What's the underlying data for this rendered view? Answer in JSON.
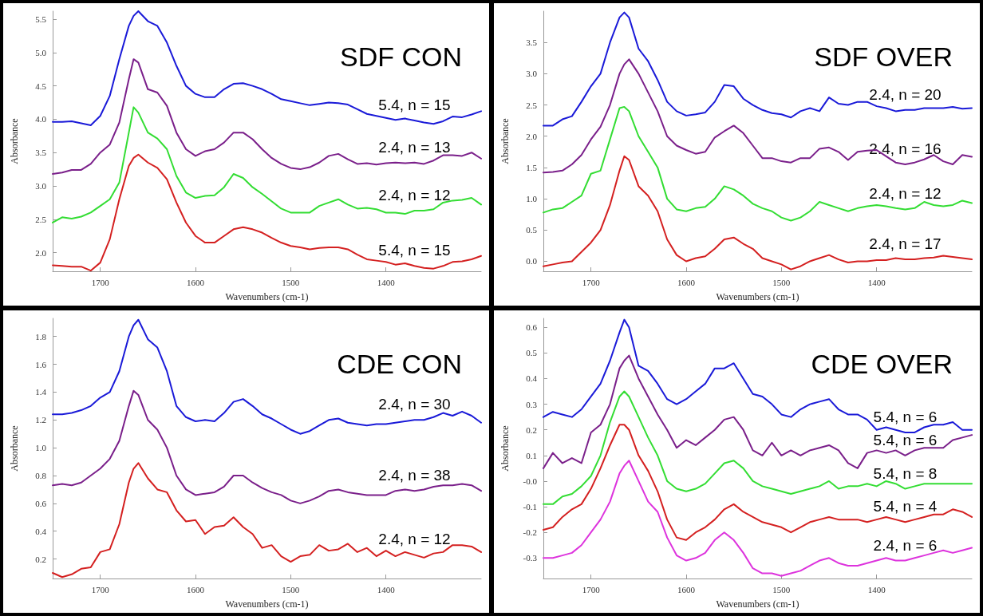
{
  "chart_data": [
    {
      "type": "line",
      "title": "SDF CON",
      "xlabel": "Wavenumbers (cm-1)",
      "ylabel": "Absorbance",
      "xlim": [
        1750,
        1300
      ],
      "xticks": [
        1700,
        1600,
        1500,
        1400
      ],
      "ylim": [
        1.72,
        5.62
      ],
      "yticks": [
        {
          "value": 2,
          "label": "2.0"
        },
        {
          "value": 2.5,
          "label": "2.5"
        },
        {
          "value": 3,
          "label": "3.0"
        },
        {
          "value": 3.5,
          "label": "3.5"
        },
        {
          "value": 4,
          "label": "4.0"
        },
        {
          "value": 4.5,
          "label": "4.5"
        },
        {
          "value": 5,
          "label": "5.0"
        },
        {
          "value": 5.5,
          "label": "5.5"
        }
      ],
      "x": [
        1750,
        1740,
        1730,
        1720,
        1710,
        1700,
        1690,
        1680,
        1670,
        1665,
        1660,
        1650,
        1640,
        1630,
        1620,
        1610,
        1600,
        1590,
        1580,
        1570,
        1560,
        1550,
        1540,
        1530,
        1520,
        1510,
        1500,
        1490,
        1480,
        1470,
        1460,
        1450,
        1440,
        1430,
        1420,
        1410,
        1400,
        1390,
        1380,
        1370,
        1360,
        1350,
        1340,
        1330,
        1320,
        1310,
        1300
      ],
      "series": [
        {
          "name": "5.4, n = 15",
          "color": "#1a1ad8",
          "values": [
            3.96,
            3.96,
            3.97,
            3.94,
            3.91,
            4.05,
            4.35,
            4.9,
            5.4,
            5.55,
            5.62,
            5.47,
            5.4,
            5.15,
            4.8,
            4.5,
            4.38,
            4.33,
            4.33,
            4.45,
            4.53,
            4.54,
            4.5,
            4.45,
            4.38,
            4.3,
            4.27,
            4.24,
            4.21,
            4.23,
            4.25,
            4.24,
            4.22,
            4.15,
            4.08,
            4.05,
            4.02,
            3.99,
            4.01,
            3.98,
            3.95,
            3.93,
            3.97,
            4.04,
            4.03,
            4.07,
            4.12
          ]
        },
        {
          "name": "2.4, n = 13",
          "color": "#7a1f8a",
          "values": [
            3.18,
            3.2,
            3.24,
            3.24,
            3.33,
            3.5,
            3.62,
            3.95,
            4.6,
            4.9,
            4.85,
            4.45,
            4.4,
            4.2,
            3.8,
            3.55,
            3.45,
            3.52,
            3.55,
            3.65,
            3.8,
            3.8,
            3.7,
            3.55,
            3.42,
            3.33,
            3.27,
            3.25,
            3.28,
            3.35,
            3.45,
            3.48,
            3.4,
            3.33,
            3.34,
            3.32,
            3.34,
            3.35,
            3.34,
            3.35,
            3.33,
            3.38,
            3.46,
            3.46,
            3.45,
            3.5,
            3.41
          ]
        },
        {
          "name": "2.4, n = 12",
          "color": "#33dd33",
          "values": [
            2.45,
            2.53,
            2.51,
            2.54,
            2.6,
            2.7,
            2.8,
            3.05,
            3.8,
            4.18,
            4.1,
            3.8,
            3.71,
            3.55,
            3.15,
            2.9,
            2.82,
            2.85,
            2.86,
            2.98,
            3.18,
            3.12,
            2.98,
            2.88,
            2.77,
            2.66,
            2.6,
            2.6,
            2.6,
            2.7,
            2.75,
            2.8,
            2.72,
            2.66,
            2.67,
            2.65,
            2.6,
            2.6,
            2.58,
            2.63,
            2.63,
            2.65,
            2.75,
            2.78,
            2.79,
            2.82,
            2.72
          ]
        },
        {
          "name": "5.4, n = 15",
          "color": "#d42020",
          "values": [
            1.81,
            1.8,
            1.79,
            1.79,
            1.73,
            1.85,
            2.2,
            2.8,
            3.3,
            3.42,
            3.47,
            3.35,
            3.27,
            3.1,
            2.75,
            2.45,
            2.25,
            2.15,
            2.15,
            2.25,
            2.35,
            2.38,
            2.35,
            2.3,
            2.22,
            2.15,
            2.1,
            2.08,
            2.05,
            2.07,
            2.08,
            2.08,
            2.05,
            1.97,
            1.9,
            1.88,
            1.86,
            1.82,
            1.84,
            1.8,
            1.77,
            1.76,
            1.8,
            1.86,
            1.87,
            1.9,
            1.95
          ]
        }
      ]
    },
    {
      "type": "line",
      "title": "SDF OVER",
      "xlabel": "Wavenumbers (cm-1)",
      "ylabel": "Absorbance",
      "xlim": [
        1750,
        1300
      ],
      "xticks": [
        1700,
        1600,
        1500,
        1400
      ],
      "ylim": [
        -0.16,
        4.0
      ],
      "yticks": [
        {
          "value": 0,
          "label": "0.0"
        },
        {
          "value": 0.5,
          "label": "0.5"
        },
        {
          "value": 1,
          "label": "1.0"
        },
        {
          "value": 1.5,
          "label": "1.5"
        },
        {
          "value": 2,
          "label": "2.0"
        },
        {
          "value": 2.5,
          "label": "2.5"
        },
        {
          "value": 3,
          "label": "3.0"
        },
        {
          "value": 3.5,
          "label": "3.5"
        }
      ],
      "x": [
        1750,
        1740,
        1730,
        1720,
        1710,
        1700,
        1690,
        1680,
        1670,
        1665,
        1660,
        1650,
        1640,
        1630,
        1620,
        1610,
        1600,
        1590,
        1580,
        1570,
        1560,
        1550,
        1540,
        1530,
        1520,
        1510,
        1500,
        1490,
        1480,
        1470,
        1460,
        1450,
        1440,
        1430,
        1420,
        1410,
        1400,
        1390,
        1380,
        1370,
        1360,
        1350,
        1340,
        1330,
        1320,
        1310,
        1300
      ],
      "series": [
        {
          "name": "2.4, n = 20",
          "color": "#1a1ad8",
          "values": [
            2.17,
            2.17,
            2.27,
            2.32,
            2.55,
            2.8,
            3.0,
            3.5,
            3.9,
            3.98,
            3.9,
            3.4,
            3.2,
            2.9,
            2.55,
            2.4,
            2.33,
            2.35,
            2.38,
            2.55,
            2.82,
            2.8,
            2.6,
            2.5,
            2.42,
            2.37,
            2.35,
            2.3,
            2.4,
            2.45,
            2.4,
            2.62,
            2.52,
            2.5,
            2.55,
            2.55,
            2.48,
            2.45,
            2.4,
            2.42,
            2.42,
            2.45,
            2.45,
            2.45,
            2.47,
            2.44,
            2.45
          ]
        },
        {
          "name": "2.4, n = 16",
          "color": "#7a1f8a",
          "values": [
            1.42,
            1.43,
            1.45,
            1.55,
            1.7,
            1.95,
            2.15,
            2.5,
            3.0,
            3.15,
            3.23,
            3.0,
            2.7,
            2.4,
            2.0,
            1.85,
            1.78,
            1.72,
            1.75,
            1.98,
            2.08,
            2.17,
            2.05,
            1.85,
            1.65,
            1.65,
            1.6,
            1.58,
            1.65,
            1.65,
            1.8,
            1.82,
            1.75,
            1.62,
            1.75,
            1.77,
            1.78,
            1.68,
            1.58,
            1.55,
            1.58,
            1.63,
            1.7,
            1.6,
            1.55,
            1.7,
            1.67
          ]
        },
        {
          "name": "2.4, n = 12",
          "color": "#33dd33",
          "values": [
            0.78,
            0.83,
            0.85,
            0.95,
            1.05,
            1.4,
            1.45,
            1.95,
            2.45,
            2.47,
            2.4,
            2.0,
            1.75,
            1.5,
            1.0,
            0.83,
            0.8,
            0.85,
            0.87,
            1.0,
            1.2,
            1.15,
            1.05,
            0.92,
            0.85,
            0.8,
            0.7,
            0.65,
            0.7,
            0.8,
            0.95,
            0.9,
            0.85,
            0.8,
            0.85,
            0.88,
            0.9,
            0.88,
            0.85,
            0.83,
            0.85,
            0.95,
            0.9,
            0.88,
            0.9,
            0.97,
            0.93
          ]
        },
        {
          "name": "2.4, n = 17",
          "color": "#d42020",
          "values": [
            -0.08,
            -0.05,
            -0.02,
            0.0,
            0.15,
            0.3,
            0.5,
            0.9,
            1.45,
            1.68,
            1.62,
            1.2,
            1.05,
            0.8,
            0.35,
            0.1,
            0.0,
            0.05,
            0.08,
            0.2,
            0.35,
            0.38,
            0.28,
            0.2,
            0.05,
            0.0,
            -0.05,
            -0.13,
            -0.08,
            0.0,
            0.05,
            0.1,
            0.03,
            -0.02,
            0.0,
            0.0,
            0.02,
            0.02,
            0.05,
            0.03,
            0.03,
            0.05,
            0.06,
            0.09,
            0.07,
            0.05,
            0.03
          ]
        }
      ]
    },
    {
      "type": "line",
      "title": "CDE CON",
      "xlabel": "Wavenumbers (cm-1)",
      "ylabel": "Absorbance",
      "xlim": [
        1750,
        1300
      ],
      "xticks": [
        1700,
        1600,
        1500,
        1400
      ],
      "ylim": [
        0.06,
        1.93
      ],
      "yticks": [
        0.2,
        0.4,
        0.6,
        0.8,
        {
          "value": 1,
          "label": "1.0"
        },
        1.2,
        1.4,
        1.6,
        1.8
      ],
      "x": [
        1750,
        1740,
        1730,
        1720,
        1710,
        1700,
        1690,
        1680,
        1670,
        1665,
        1660,
        1650,
        1640,
        1630,
        1620,
        1610,
        1600,
        1590,
        1580,
        1570,
        1560,
        1550,
        1540,
        1530,
        1520,
        1510,
        1500,
        1490,
        1480,
        1470,
        1460,
        1450,
        1440,
        1430,
        1420,
        1410,
        1400,
        1390,
        1380,
        1370,
        1360,
        1350,
        1340,
        1330,
        1320,
        1310,
        1300
      ],
      "series": [
        {
          "name": "2.4, n = 30",
          "color": "#1a1ad8",
          "values": [
            1.24,
            1.24,
            1.25,
            1.27,
            1.3,
            1.36,
            1.4,
            1.55,
            1.8,
            1.88,
            1.92,
            1.78,
            1.72,
            1.55,
            1.3,
            1.22,
            1.19,
            1.2,
            1.19,
            1.25,
            1.33,
            1.35,
            1.3,
            1.24,
            1.21,
            1.17,
            1.13,
            1.1,
            1.12,
            1.16,
            1.2,
            1.21,
            1.18,
            1.17,
            1.16,
            1.17,
            1.17,
            1.18,
            1.19,
            1.2,
            1.2,
            1.22,
            1.25,
            1.23,
            1.26,
            1.23,
            1.18
          ]
        },
        {
          "name": "2.4, n = 38",
          "color": "#7a1f8a",
          "values": [
            0.73,
            0.74,
            0.73,
            0.75,
            0.8,
            0.85,
            0.92,
            1.05,
            1.3,
            1.41,
            1.38,
            1.2,
            1.13,
            1.0,
            0.8,
            0.7,
            0.66,
            0.67,
            0.68,
            0.72,
            0.8,
            0.8,
            0.75,
            0.71,
            0.68,
            0.66,
            0.62,
            0.6,
            0.62,
            0.65,
            0.69,
            0.7,
            0.68,
            0.67,
            0.66,
            0.66,
            0.66,
            0.69,
            0.7,
            0.69,
            0.7,
            0.72,
            0.73,
            0.73,
            0.74,
            0.73,
            0.69
          ]
        },
        {
          "name": "2.4, n = 12",
          "color": "#d42020",
          "values": [
            0.1,
            0.07,
            0.09,
            0.13,
            0.14,
            0.25,
            0.27,
            0.45,
            0.75,
            0.85,
            0.89,
            0.78,
            0.7,
            0.68,
            0.55,
            0.47,
            0.48,
            0.38,
            0.43,
            0.44,
            0.5,
            0.43,
            0.38,
            0.28,
            0.3,
            0.22,
            0.18,
            0.22,
            0.23,
            0.3,
            0.26,
            0.27,
            0.31,
            0.25,
            0.28,
            0.22,
            0.26,
            0.22,
            0.25,
            0.23,
            0.21,
            0.24,
            0.25,
            0.3,
            0.3,
            0.29,
            0.25
          ]
        }
      ]
    },
    {
      "type": "line",
      "title": "CDE OVER",
      "xlabel": "Wavenumbers (cm-1)",
      "ylabel": "Absorbance",
      "xlim": [
        1750,
        1300
      ],
      "xticks": [
        1700,
        1600,
        1500,
        1400
      ],
      "ylim": [
        -0.38,
        0.635
      ],
      "yticks": [
        -0.3,
        -0.2,
        -0.1,
        {
          "value": 0,
          "label": "-0.0"
        },
        0.1,
        0.2,
        0.3,
        0.4,
        0.5,
        0.6
      ],
      "x": [
        1750,
        1740,
        1730,
        1720,
        1710,
        1700,
        1690,
        1680,
        1670,
        1665,
        1660,
        1650,
        1640,
        1630,
        1620,
        1610,
        1600,
        1590,
        1580,
        1570,
        1560,
        1550,
        1540,
        1530,
        1520,
        1510,
        1500,
        1490,
        1480,
        1470,
        1460,
        1450,
        1440,
        1430,
        1420,
        1410,
        1400,
        1390,
        1380,
        1370,
        1360,
        1350,
        1340,
        1330,
        1320,
        1310,
        1300
      ],
      "series": [
        {
          "name": "5.4, n = 6",
          "color": "#1a1ad8",
          "values": [
            0.25,
            0.27,
            0.26,
            0.25,
            0.28,
            0.33,
            0.38,
            0.47,
            0.58,
            0.63,
            0.6,
            0.45,
            0.43,
            0.38,
            0.32,
            0.3,
            0.32,
            0.35,
            0.38,
            0.44,
            0.44,
            0.46,
            0.4,
            0.34,
            0.33,
            0.3,
            0.26,
            0.25,
            0.28,
            0.3,
            0.31,
            0.32,
            0.28,
            0.26,
            0.26,
            0.24,
            0.2,
            0.21,
            0.2,
            0.19,
            0.19,
            0.21,
            0.22,
            0.22,
            0.23,
            0.2,
            0.2
          ]
        },
        {
          "name": "5.4, n = 6",
          "color": "#7a1f8a",
          "values": [
            0.05,
            0.11,
            0.07,
            0.09,
            0.07,
            0.19,
            0.22,
            0.3,
            0.44,
            0.47,
            0.49,
            0.4,
            0.33,
            0.26,
            0.2,
            0.13,
            0.16,
            0.14,
            0.17,
            0.2,
            0.24,
            0.25,
            0.2,
            0.12,
            0.1,
            0.15,
            0.1,
            0.12,
            0.1,
            0.12,
            0.13,
            0.14,
            0.12,
            0.07,
            0.05,
            0.11,
            0.12,
            0.11,
            0.12,
            0.1,
            0.12,
            0.13,
            0.13,
            0.13,
            0.16,
            0.17,
            0.18
          ]
        },
        {
          "name": "5.4, n = 8",
          "color": "#33dd33",
          "values": [
            -0.09,
            -0.09,
            -0.06,
            -0.05,
            -0.02,
            0.02,
            0.1,
            0.23,
            0.33,
            0.35,
            0.33,
            0.25,
            0.17,
            0.1,
            0.0,
            -0.03,
            -0.04,
            -0.03,
            -0.01,
            0.03,
            0.07,
            0.08,
            0.05,
            0.0,
            -0.02,
            -0.03,
            -0.04,
            -0.05,
            -0.04,
            -0.03,
            -0.02,
            0.0,
            -0.03,
            -0.02,
            -0.02,
            -0.01,
            -0.02,
            0.0,
            -0.01,
            -0.03,
            -0.02,
            -0.01,
            -0.01,
            -0.01,
            -0.01,
            -0.01,
            -0.01
          ]
        },
        {
          "name": "5.4, n = 4",
          "color": "#d42020",
          "values": [
            -0.19,
            -0.18,
            -0.14,
            -0.11,
            -0.09,
            -0.03,
            0.05,
            0.14,
            0.22,
            0.22,
            0.2,
            0.1,
            0.04,
            -0.04,
            -0.15,
            -0.22,
            -0.23,
            -0.2,
            -0.18,
            -0.15,
            -0.11,
            -0.09,
            -0.12,
            -0.14,
            -0.16,
            -0.17,
            -0.18,
            -0.2,
            -0.18,
            -0.16,
            -0.15,
            -0.14,
            -0.15,
            -0.15,
            -0.15,
            -0.16,
            -0.15,
            -0.14,
            -0.15,
            -0.16,
            -0.15,
            -0.14,
            -0.13,
            -0.13,
            -0.11,
            -0.12,
            -0.14
          ]
        },
        {
          "name": "2.4, n = 6",
          "color": "#dd33dd",
          "values": [
            -0.3,
            -0.3,
            -0.29,
            -0.28,
            -0.25,
            -0.2,
            -0.15,
            -0.08,
            0.03,
            0.06,
            0.08,
            0.0,
            -0.08,
            -0.12,
            -0.22,
            -0.29,
            -0.31,
            -0.3,
            -0.28,
            -0.23,
            -0.2,
            -0.23,
            -0.28,
            -0.34,
            -0.36,
            -0.36,
            -0.37,
            -0.36,
            -0.35,
            -0.33,
            -0.31,
            -0.3,
            -0.32,
            -0.33,
            -0.33,
            -0.32,
            -0.31,
            -0.3,
            -0.31,
            -0.31,
            -0.3,
            -0.29,
            -0.28,
            -0.27,
            -0.28,
            -0.27,
            -0.26
          ]
        }
      ]
    }
  ]
}
